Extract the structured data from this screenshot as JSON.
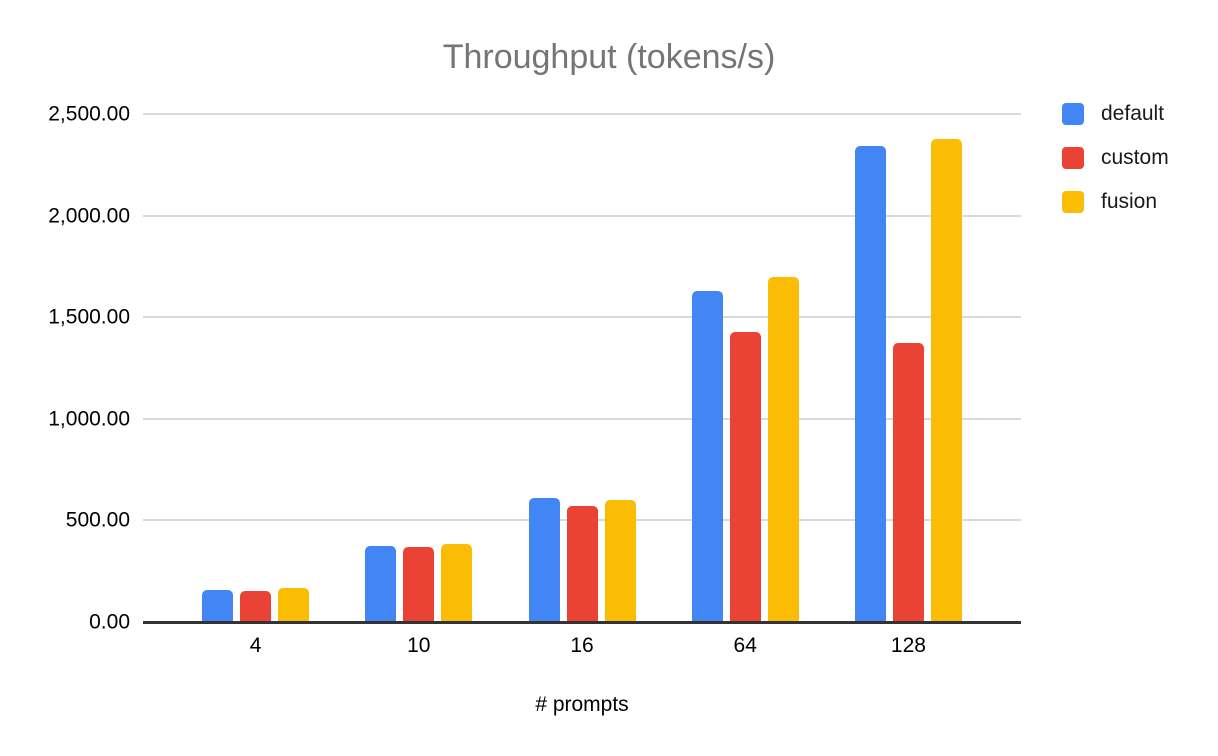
{
  "chart_data": {
    "type": "bar",
    "title": "Throughput (tokens/s)",
    "xlabel": "# prompts",
    "ylabel": "",
    "categories": [
      "4",
      "10",
      "16",
      "64",
      "128"
    ],
    "series": [
      {
        "name": "default",
        "color": "#4285F4",
        "values": [
          156,
          372,
          610,
          1630,
          2345
        ]
      },
      {
        "name": "custom",
        "color": "#EA4335",
        "values": [
          155,
          370,
          572,
          1428,
          1375
        ]
      },
      {
        "name": "fusion",
        "color": "#FBBC04",
        "values": [
          167,
          383,
          600,
          1700,
          2375
        ]
      }
    ],
    "ylim": [
      0,
      2500
    ],
    "ytick_step": 500,
    "ytick_labels": [
      "0.00",
      "500.00",
      "1,000.00",
      "1,500.00",
      "2,000.00",
      "2,500.00"
    ],
    "grid": true,
    "legend_position": "right",
    "colors": {
      "title_text": "#757575",
      "axis_text": "#000000",
      "gridline": "#d9d9d9",
      "axis_line": "#333333",
      "background": "#ffffff"
    }
  }
}
